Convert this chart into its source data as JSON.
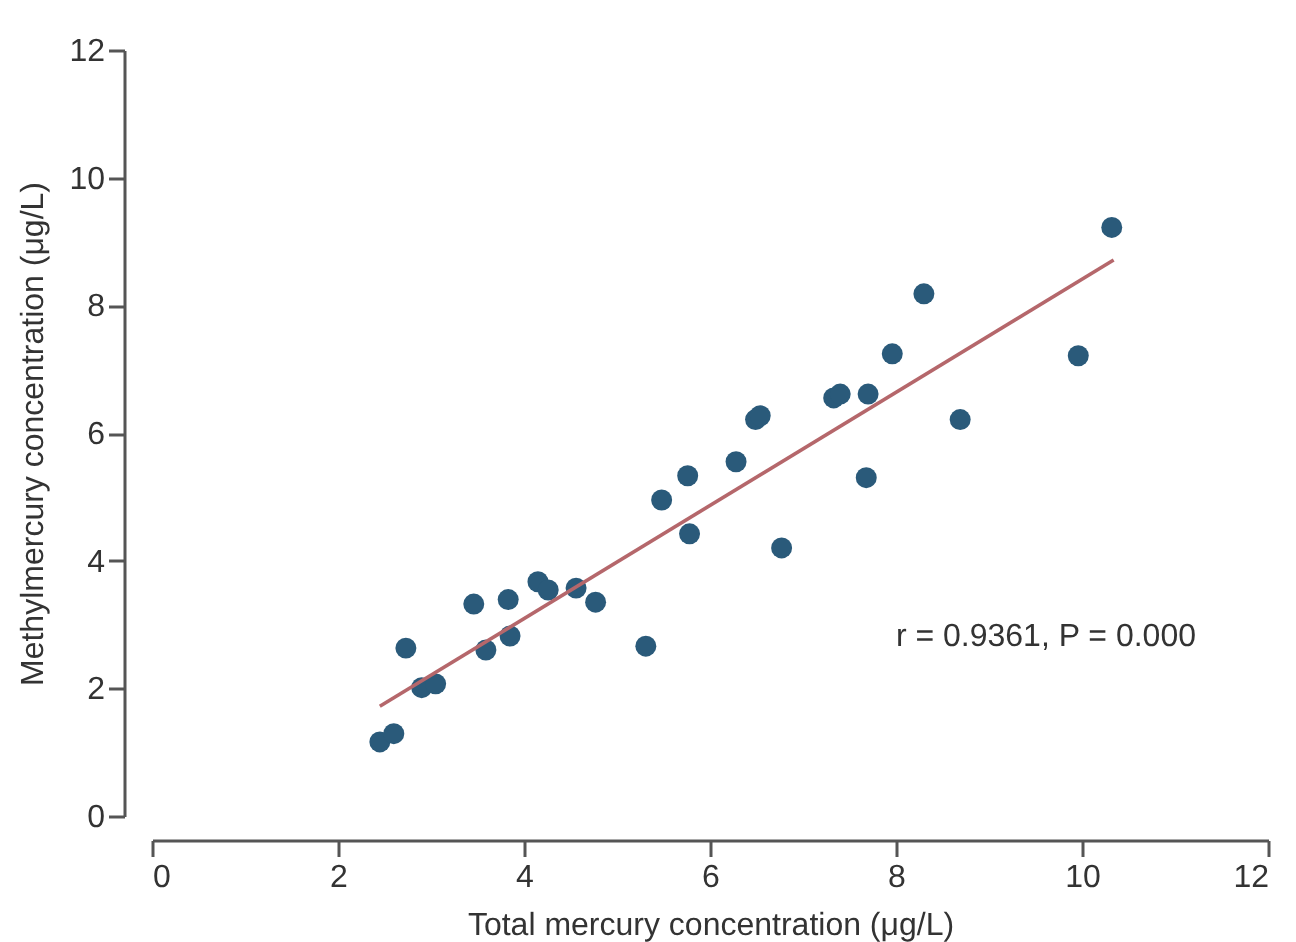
{
  "chart_data": {
    "type": "scatter",
    "xlabel": "Total mercury concentration (μg/L)",
    "ylabel": "Methylmercury concentration (μg/L)",
    "xlim": [
      0,
      12
    ],
    "ylim": [
      0,
      12
    ],
    "xticks": [
      0,
      2,
      4,
      6,
      8,
      10,
      12
    ],
    "yticks": [
      0,
      2,
      4,
      6,
      8,
      10,
      12
    ],
    "grid": false,
    "marker": "circle",
    "annotations": [
      "r = 0.9361, P = 0.000"
    ],
    "series": [
      {
        "type": "scatter",
        "color": "#2a5a7a",
        "x": [
          2.45,
          2.6,
          2.73,
          2.9,
          3.05,
          3.46,
          3.59,
          3.83,
          3.85,
          4.15,
          4.26,
          4.56,
          4.77,
          5.31,
          5.48,
          5.76,
          5.78,
          6.28,
          6.49,
          6.54,
          6.77,
          7.33,
          7.4,
          7.7,
          7.68,
          7.96,
          8.3,
          8.69,
          9.96,
          10.32
        ],
        "values": [
          1.16,
          1.29,
          2.63,
          2.01,
          2.07,
          3.32,
          2.6,
          3.39,
          2.82,
          3.67,
          3.54,
          3.57,
          3.35,
          2.66,
          4.95,
          5.33,
          4.42,
          5.55,
          6.21,
          6.27,
          4.2,
          6.55,
          6.61,
          6.61,
          5.3,
          7.24,
          8.18,
          6.21,
          7.21,
          9.22
        ]
      },
      {
        "type": "line",
        "marker": "none",
        "color": "#b5676b",
        "x": [
          2.45,
          10.34
        ],
        "values": [
          1.72,
          8.71
        ]
      }
    ]
  }
}
